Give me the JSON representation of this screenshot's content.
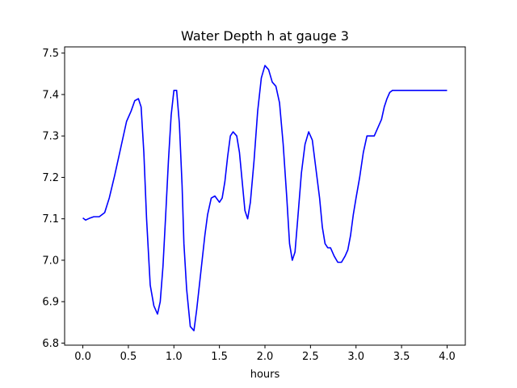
{
  "chart_data": {
    "type": "line",
    "title": "Water Depth h at gauge 3",
    "xlabel": "hours",
    "ylabel": "",
    "xlim": [
      -0.2,
      4.2
    ],
    "ylim": [
      6.795,
      7.515
    ],
    "grid": false,
    "legend": "none",
    "x_ticks": [
      0.0,
      0.5,
      1.0,
      1.5,
      2.0,
      2.5,
      3.0,
      3.5,
      4.0
    ],
    "x_tick_labels": [
      "0.0",
      "0.5",
      "1.0",
      "1.5",
      "2.0",
      "2.5",
      "3.0",
      "3.5",
      "4.0"
    ],
    "y_ticks": [
      6.8,
      6.9,
      7.0,
      7.1,
      7.2,
      7.3,
      7.4,
      7.5
    ],
    "y_tick_labels": [
      "6.8",
      "6.9",
      "7.0",
      "7.1",
      "7.2",
      "7.3",
      "7.4",
      "7.5"
    ],
    "colors": {
      "line": "#0000ff",
      "axes": "#000000"
    },
    "series": [
      {
        "x": [
          0.0,
          0.03,
          0.07,
          0.12,
          0.18,
          0.24,
          0.29,
          0.35,
          0.42,
          0.48,
          0.53,
          0.57,
          0.61,
          0.64,
          0.67,
          0.7,
          0.74,
          0.78,
          0.82,
          0.85,
          0.88,
          0.91,
          0.94,
          0.97,
          1.0,
          1.03,
          1.06,
          1.09,
          1.11,
          1.14,
          1.18,
          1.22,
          1.25,
          1.28,
          1.31,
          1.34,
          1.37,
          1.41,
          1.45,
          1.5,
          1.53,
          1.56,
          1.59,
          1.62,
          1.65,
          1.69,
          1.72,
          1.75,
          1.78,
          1.81,
          1.84,
          1.88,
          1.92,
          1.96,
          2.0,
          2.04,
          2.08,
          2.12,
          2.16,
          2.2,
          2.24,
          2.27,
          2.3,
          2.33,
          2.36,
          2.4,
          2.44,
          2.48,
          2.52,
          2.56,
          2.6,
          2.63,
          2.66,
          2.69,
          2.72,
          2.76,
          2.8,
          2.84,
          2.88,
          2.91,
          2.94,
          2.97,
          3.0,
          3.04,
          3.08,
          3.12,
          3.16,
          3.2,
          3.24,
          3.28,
          3.31,
          3.34,
          3.37,
          3.4,
          3.44,
          3.48,
          3.52,
          3.56,
          3.6,
          3.63,
          3.66,
          3.69,
          3.72,
          3.76,
          3.8,
          3.84,
          3.88,
          3.92,
          3.95,
          3.98,
          4.0
        ],
        "y": [
          7.102,
          7.097,
          7.101,
          7.105,
          7.105,
          7.115,
          7.15,
          7.205,
          7.275,
          7.335,
          7.36,
          7.385,
          7.39,
          7.37,
          7.26,
          7.1,
          6.94,
          6.89,
          6.87,
          6.9,
          6.985,
          7.11,
          7.24,
          7.35,
          7.41,
          7.41,
          7.33,
          7.18,
          7.04,
          6.93,
          6.84,
          6.83,
          6.88,
          6.94,
          7.0,
          7.06,
          7.11,
          7.15,
          7.155,
          7.14,
          7.15,
          7.19,
          7.25,
          7.3,
          7.31,
          7.3,
          7.26,
          7.19,
          7.12,
          7.1,
          7.14,
          7.24,
          7.36,
          7.44,
          7.47,
          7.46,
          7.43,
          7.42,
          7.38,
          7.28,
          7.15,
          7.04,
          7.0,
          7.02,
          7.1,
          7.21,
          7.28,
          7.31,
          7.29,
          7.22,
          7.15,
          7.08,
          7.04,
          7.03,
          7.03,
          7.01,
          6.995,
          6.995,
          7.01,
          7.025,
          7.06,
          7.11,
          7.15,
          7.2,
          7.26,
          7.3,
          7.3,
          7.3,
          7.32,
          7.34,
          7.37,
          7.39,
          7.405,
          7.41,
          7.41,
          7.41,
          7.41,
          7.41,
          7.41,
          7.41,
          7.41,
          7.41,
          7.41,
          7.41,
          7.41,
          7.41,
          7.41,
          7.41,
          7.41,
          7.41,
          7.41
        ]
      }
    ]
  }
}
